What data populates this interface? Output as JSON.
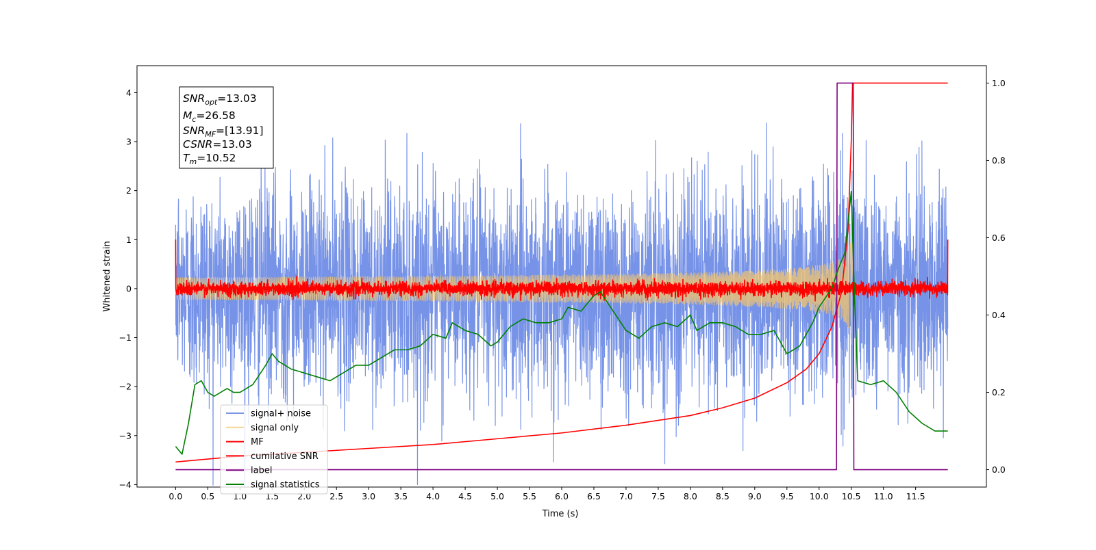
{
  "chart_data": {
    "type": "line",
    "title": "",
    "xlabel": "Time (s)",
    "ylabel": "Whitened strain",
    "ylabel_right": "",
    "xlim": [
      -0.6,
      12.6
    ],
    "ylim_left": [
      -4.05,
      4.55
    ],
    "ylim_right": [
      -0.045,
      1.045
    ],
    "x_ticks": [
      "0.0",
      "0.5",
      "1.0",
      "1.5",
      "2.0",
      "2.5",
      "3.0",
      "3.5",
      "4.0",
      "4.5",
      "5.0",
      "5.5",
      "6.0",
      "6.5",
      "7.0",
      "7.5",
      "8.0",
      "8.5",
      "9.0",
      "9.5",
      "10.0",
      "10.5",
      "11.0",
      "11.5"
    ],
    "y_ticks_left": [
      "−4",
      "−3",
      "−2",
      "−1",
      "0",
      "1",
      "2",
      "3",
      "4"
    ],
    "y_ticks_right": [
      "0.0",
      "0.2",
      "0.4",
      "0.6",
      "0.8",
      "1.0"
    ],
    "grid": false,
    "legend_position": "lower-left",
    "annotation": {
      "snr_opt": {
        "base": "SNR",
        "sub": "opt",
        "value": "=13.03"
      },
      "mc": {
        "base": "M",
        "sub": "c",
        "value": "=26.58"
      },
      "snr_mf": {
        "base": "SNR",
        "sub": "MF",
        "value": "=[13.91]"
      },
      "csnr": {
        "base": "CSNR",
        "value": "=13.03"
      },
      "tm": {
        "base": "T",
        "sub": "m",
        "value": "=10.52"
      }
    },
    "series": [
      {
        "name": "signal+ noise",
        "color": "#6b8ae5",
        "axis": "left",
        "kind": "noise",
        "std": 1.0,
        "x_range": [
          0.0,
          12.0
        ]
      },
      {
        "name": "signal only",
        "color": "#f5c56b",
        "axis": "left",
        "kind": "chirp",
        "merger_time": 10.52,
        "peak_amplitude": 1.8
      },
      {
        "name": "MF",
        "color": "#ff0000",
        "axis": "left",
        "kind": "mf",
        "std": 0.07
      },
      {
        "name": "cumilative SNR",
        "color": "#ff0000",
        "axis": "right",
        "x": [
          0.0,
          1.0,
          2.0,
          3.0,
          4.0,
          5.0,
          6.0,
          7.0,
          8.0,
          8.5,
          9.0,
          9.5,
          9.8,
          10.0,
          10.2,
          10.35,
          10.45,
          10.5,
          10.52,
          11.0,
          12.0
        ],
        "values": [
          0.02,
          0.035,
          0.045,
          0.055,
          0.065,
          0.08,
          0.095,
          0.115,
          0.14,
          0.16,
          0.185,
          0.225,
          0.26,
          0.3,
          0.37,
          0.46,
          0.62,
          0.85,
          1.0,
          1.0,
          1.0
        ]
      },
      {
        "name": "label",
        "color": "#800080",
        "axis": "right",
        "x": [
          0.0,
          10.27,
          10.28,
          10.46,
          10.47,
          10.53,
          10.54,
          12.0
        ],
        "values": [
          0.0,
          0.0,
          1.0,
          1.0,
          1.0,
          1.0,
          0.0,
          0.0
        ]
      },
      {
        "name": "signal statistics",
        "color": "#008000",
        "axis": "right",
        "x": [
          0.0,
          0.1,
          0.2,
          0.3,
          0.4,
          0.5,
          0.6,
          0.7,
          0.8,
          0.9,
          1.0,
          1.2,
          1.4,
          1.5,
          1.6,
          1.7,
          1.8,
          2.0,
          2.2,
          2.4,
          2.6,
          2.8,
          3.0,
          3.2,
          3.4,
          3.6,
          3.8,
          4.0,
          4.2,
          4.3,
          4.5,
          4.7,
          4.9,
          5.0,
          5.2,
          5.4,
          5.6,
          5.8,
          6.0,
          6.1,
          6.3,
          6.5,
          6.6,
          6.8,
          7.0,
          7.2,
          7.4,
          7.6,
          7.8,
          8.0,
          8.1,
          8.3,
          8.5,
          8.7,
          8.9,
          9.1,
          9.3,
          9.5,
          9.7,
          9.9,
          10.0,
          10.2,
          10.3,
          10.4,
          10.5,
          10.55,
          10.6,
          10.8,
          11.0,
          11.2,
          11.4,
          11.6,
          11.8,
          12.0
        ],
        "values": [
          0.06,
          0.04,
          0.12,
          0.22,
          0.23,
          0.2,
          0.19,
          0.2,
          0.21,
          0.2,
          0.2,
          0.22,
          0.27,
          0.3,
          0.28,
          0.27,
          0.26,
          0.25,
          0.24,
          0.23,
          0.25,
          0.27,
          0.27,
          0.29,
          0.31,
          0.31,
          0.32,
          0.35,
          0.34,
          0.38,
          0.36,
          0.35,
          0.32,
          0.33,
          0.37,
          0.39,
          0.38,
          0.38,
          0.39,
          0.42,
          0.41,
          0.45,
          0.46,
          0.41,
          0.36,
          0.34,
          0.37,
          0.38,
          0.37,
          0.4,
          0.36,
          0.38,
          0.38,
          0.37,
          0.35,
          0.35,
          0.36,
          0.3,
          0.32,
          0.38,
          0.42,
          0.47,
          0.52,
          0.56,
          0.72,
          0.45,
          0.23,
          0.22,
          0.23,
          0.2,
          0.15,
          0.12,
          0.1,
          0.1
        ]
      }
    ]
  }
}
